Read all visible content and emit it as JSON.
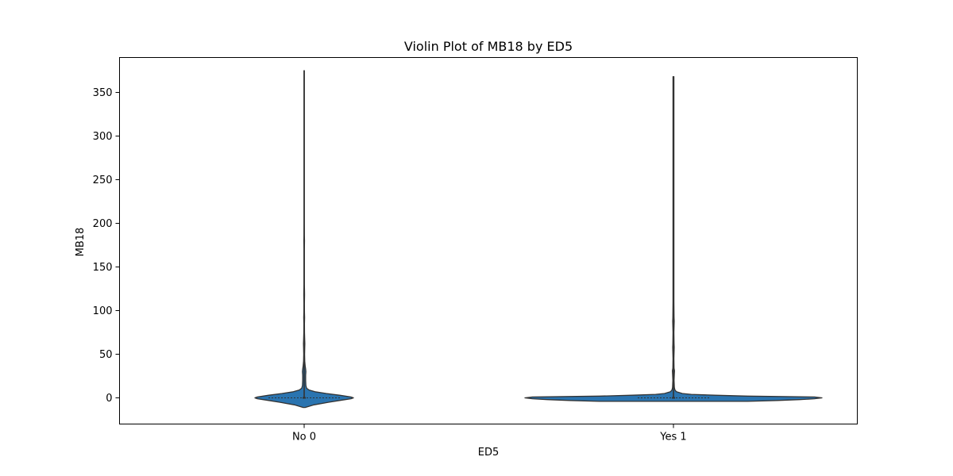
{
  "chart_data": {
    "type": "violin",
    "title": "Violin Plot of MB18 by ED5",
    "xlabel": "ED5",
    "ylabel": "MB18",
    "ylim": [
      -30,
      390
    ],
    "yticks": [
      0,
      50,
      100,
      150,
      200,
      250,
      300,
      350
    ],
    "grid": false,
    "legend": "none",
    "color": "#2a74b0",
    "categories": [
      "No 0",
      "Yes 1"
    ],
    "violins": [
      {
        "category": "No 0",
        "min": 0,
        "q1": 0,
        "median": 0,
        "q3": 0,
        "max": 375,
        "density": [
          [
            -11,
            0.02
          ],
          [
            -8,
            0.2
          ],
          [
            -5,
            0.5
          ],
          [
            -3,
            0.72
          ],
          [
            -1,
            0.95
          ],
          [
            0,
            1.0
          ],
          [
            1,
            0.95
          ],
          [
            3,
            0.72
          ],
          [
            5,
            0.45
          ],
          [
            7,
            0.22
          ],
          [
            9,
            0.1
          ],
          [
            11,
            0.05
          ],
          [
            14,
            0.035
          ],
          [
            20,
            0.03
          ],
          [
            26,
            0.03
          ],
          [
            30,
            0.035
          ],
          [
            33,
            0.03
          ],
          [
            37,
            0.02
          ],
          [
            42,
            0.012
          ],
          [
            50,
            0.009
          ],
          [
            58,
            0.012
          ],
          [
            62,
            0.014
          ],
          [
            67,
            0.011
          ],
          [
            75,
            0.007
          ],
          [
            85,
            0.006
          ],
          [
            92,
            0.009
          ],
          [
            98,
            0.006
          ],
          [
            108,
            0.005
          ],
          [
            118,
            0.008
          ],
          [
            123,
            0.007
          ],
          [
            130,
            0.004
          ],
          [
            150,
            0.004
          ],
          [
            170,
            0.004
          ],
          [
            180,
            0.007
          ],
          [
            186,
            0.004
          ],
          [
            200,
            0.003
          ],
          [
            250,
            0.003
          ],
          [
            300,
            0.003
          ],
          [
            350,
            0.003
          ],
          [
            375,
            0.003
          ]
        ]
      },
      {
        "category": "Yes 1",
        "min": 0,
        "q1": 0,
        "median": 0,
        "q3": 0,
        "max": 368,
        "density": [
          [
            -4,
            0.5
          ],
          [
            -3,
            0.7
          ],
          [
            -2,
            0.85
          ],
          [
            -1,
            0.95
          ],
          [
            0,
            1.0
          ],
          [
            1,
            0.95
          ],
          [
            2,
            0.5
          ],
          [
            3,
            0.28
          ],
          [
            4,
            0.12
          ],
          [
            5,
            0.06
          ],
          [
            6,
            0.04
          ],
          [
            7,
            0.02
          ],
          [
            9,
            0.01
          ],
          [
            12,
            0.006
          ],
          [
            20,
            0.004
          ],
          [
            28,
            0.006
          ],
          [
            31,
            0.007
          ],
          [
            34,
            0.004
          ],
          [
            45,
            0.003
          ],
          [
            58,
            0.005
          ],
          [
            62,
            0.004
          ],
          [
            75,
            0.003
          ],
          [
            88,
            0.005
          ],
          [
            92,
            0.004
          ],
          [
            110,
            0.003
          ],
          [
            150,
            0.003
          ],
          [
            200,
            0.003
          ],
          [
            250,
            0.003
          ],
          [
            300,
            0.003
          ],
          [
            340,
            0.003
          ],
          [
            368,
            0.003
          ]
        ]
      }
    ]
  }
}
